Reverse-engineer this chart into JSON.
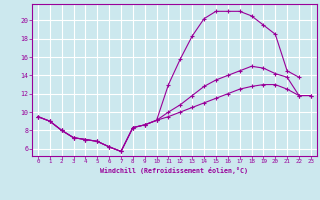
{
  "xlabel": "Windchill (Refroidissement éolien,°C)",
  "background_color": "#cce8ee",
  "grid_color": "#ffffff",
  "line_color": "#990099",
  "x_ticks": [
    0,
    1,
    2,
    3,
    4,
    5,
    6,
    7,
    8,
    9,
    10,
    11,
    12,
    13,
    14,
    15,
    16,
    17,
    18,
    19,
    20,
    21,
    22,
    23
  ],
  "y_ticks": [
    6,
    8,
    10,
    12,
    14,
    16,
    18,
    20
  ],
  "ylim": [
    5.2,
    21.8
  ],
  "xlim": [
    -0.5,
    23.5
  ],
  "line1_x": [
    0,
    1,
    2,
    3,
    4,
    5,
    6,
    7,
    8,
    9,
    10,
    11,
    12,
    13,
    14,
    15,
    16,
    17,
    18,
    19,
    20,
    21,
    22,
    23
  ],
  "line1_y": [
    9.5,
    9.0,
    8.0,
    7.2,
    7.0,
    6.8,
    6.2,
    5.7,
    8.3,
    8.6,
    9.1,
    13.0,
    15.8,
    18.3,
    20.2,
    21.0,
    21.0,
    21.0,
    20.5,
    19.5,
    18.5,
    14.5,
    13.8,
    null
  ],
  "line2_x": [
    0,
    1,
    2,
    3,
    4,
    5,
    6,
    7,
    8,
    9,
    10,
    11,
    12,
    13,
    14,
    15,
    16,
    17,
    18,
    19,
    20,
    21,
    22,
    23
  ],
  "line2_y": [
    9.5,
    9.0,
    8.0,
    7.2,
    7.0,
    6.8,
    6.2,
    5.7,
    8.3,
    8.6,
    9.1,
    10.0,
    10.8,
    11.8,
    12.8,
    13.5,
    14.0,
    14.5,
    15.0,
    14.8,
    14.2,
    13.8,
    11.8,
    11.8
  ],
  "line3_x": [
    0,
    1,
    2,
    3,
    4,
    5,
    6,
    7,
    8,
    9,
    10,
    11,
    12,
    13,
    14,
    15,
    16,
    17,
    18,
    19,
    20,
    21,
    22,
    23
  ],
  "line3_y": [
    9.5,
    9.0,
    8.0,
    7.2,
    7.0,
    6.8,
    6.2,
    5.7,
    8.3,
    8.6,
    9.1,
    9.5,
    10.0,
    10.5,
    11.0,
    11.5,
    12.0,
    12.5,
    12.8,
    13.0,
    13.0,
    12.5,
    11.8,
    11.8
  ]
}
